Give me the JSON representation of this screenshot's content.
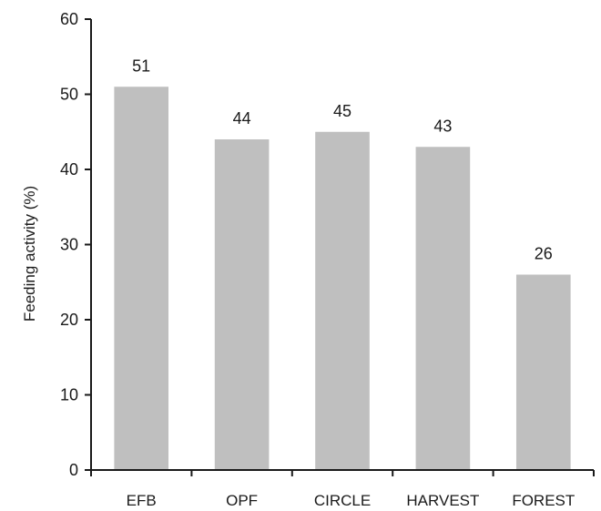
{
  "chart_data": {
    "type": "bar",
    "categories": [
      "EFB",
      "OPF",
      "CIRCLE",
      "HARVEST",
      "FOREST"
    ],
    "values": [
      51,
      44,
      45,
      43,
      26
    ],
    "data_labels": [
      "51",
      "44",
      "45",
      "43",
      "26"
    ],
    "title": "",
    "xlabel": "",
    "ylabel": "Feeding activity (%)",
    "ylim": [
      0,
      60
    ],
    "yticks": [
      0,
      10,
      20,
      30,
      40,
      50,
      60
    ],
    "grid": false,
    "legend": "none",
    "bar_color": "#bfbfbf"
  }
}
